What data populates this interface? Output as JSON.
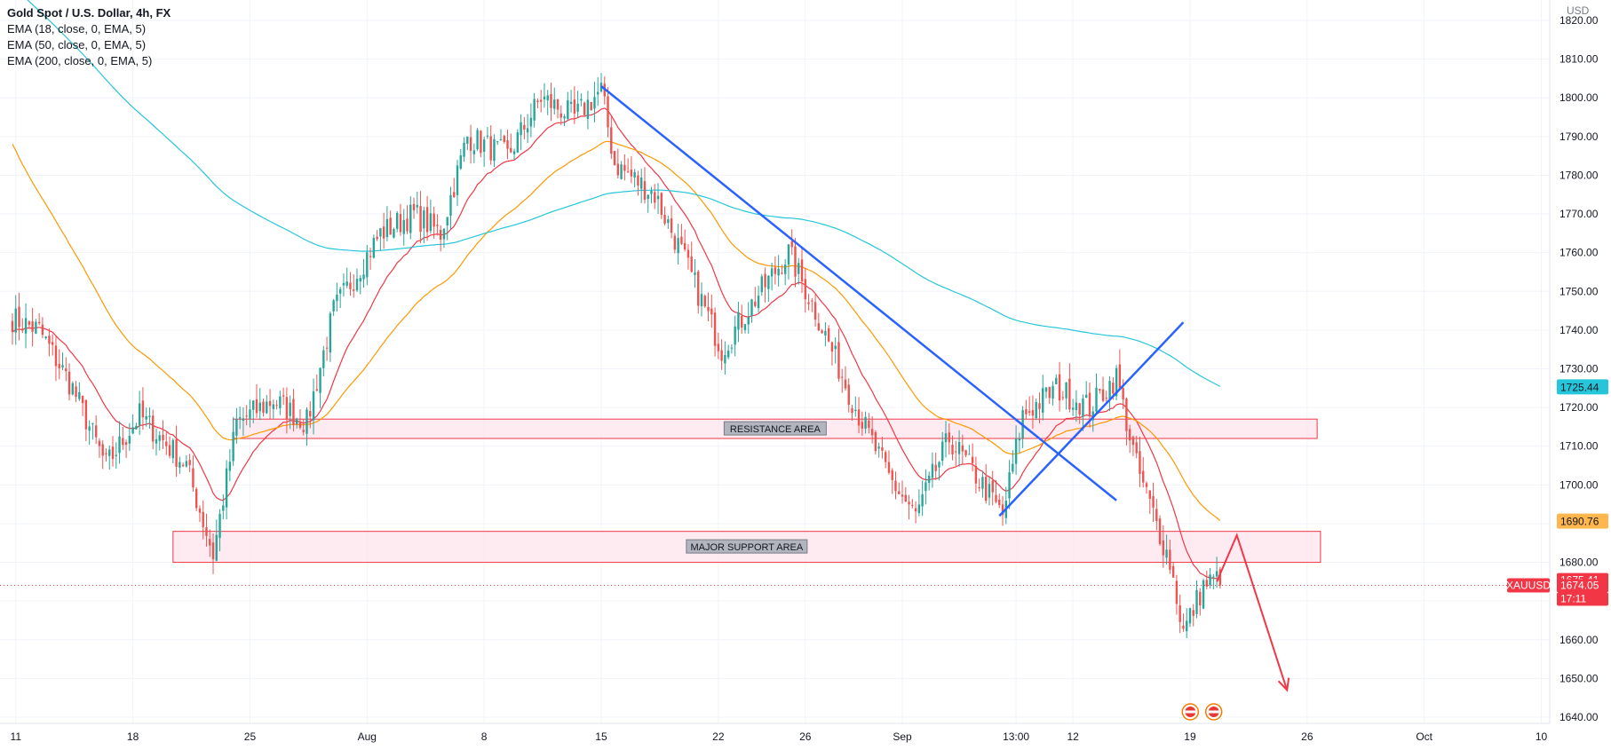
{
  "legend": {
    "symbol_title": "Gold Spot / U.S. Dollar, 4h, FX",
    "indicators": [
      {
        "label": "EMA (18, close, 0, EMA, 5)",
        "color": "#f23645"
      },
      {
        "label": "EMA (50, close, 0, EMA, 5)",
        "color": "#ff9800"
      },
      {
        "label": "EMA (200, close, 0, EMA, 5)",
        "color": "#26c6da"
      }
    ]
  },
  "chart_data": {
    "type": "candlestick",
    "currency": "USD",
    "symbol": "XAUUSD",
    "ylim": [
      1637,
      1825
    ],
    "y_ticks": [
      1640,
      1650,
      1660,
      1670,
      1680,
      1690,
      1700,
      1710,
      1720,
      1730,
      1740,
      1750,
      1760,
      1770,
      1780,
      1790,
      1800,
      1810,
      1820
    ],
    "y_tick_labels": [
      "1640.00",
      "1650.00",
      "1660.00",
      "1670.00",
      "1680.00",
      "1690.00",
      "1700.00",
      "1710.00",
      "1720.00",
      "1730.00",
      "1740.00",
      "1750.00",
      "1760.00",
      "1770.00",
      "1780.00",
      "1790.00",
      "1800.00",
      "1810.00",
      "1820.00"
    ],
    "x_ticks": [
      {
        "label": "11",
        "bar": 1
      },
      {
        "label": "18",
        "bar": 36
      },
      {
        "label": "25",
        "bar": 71
      },
      {
        "label": "Aug",
        "bar": 106
      },
      {
        "label": "8",
        "bar": 141
      },
      {
        "label": "15",
        "bar": 176
      },
      {
        "label": "22",
        "bar": 211
      },
      {
        "label": "26",
        "bar": 237
      },
      {
        "label": "Sep",
        "bar": 266
      },
      {
        "label": "13:00",
        "bar": 300
      },
      {
        "label": "12",
        "bar": 317
      },
      {
        "label": "19",
        "bar": 352
      },
      {
        "label": "26",
        "bar": 387
      },
      {
        "label": "Oct",
        "bar": 422
      },
      {
        "label": "10",
        "bar": 457
      }
    ],
    "total_bars": 470,
    "price_waypoints": [
      [
        0,
        1743
      ],
      [
        8,
        1740
      ],
      [
        18,
        1725
      ],
      [
        28,
        1705
      ],
      [
        38,
        1718
      ],
      [
        52,
        1705
      ],
      [
        60,
        1682
      ],
      [
        67,
        1716
      ],
      [
        78,
        1722
      ],
      [
        88,
        1716
      ],
      [
        96,
        1745
      ],
      [
        110,
        1765
      ],
      [
        120,
        1770
      ],
      [
        128,
        1765
      ],
      [
        136,
        1790
      ],
      [
        148,
        1785
      ],
      [
        158,
        1800
      ],
      [
        168,
        1795
      ],
      [
        176,
        1802
      ],
      [
        180,
        1783
      ],
      [
        192,
        1775
      ],
      [
        200,
        1760
      ],
      [
        212,
        1735
      ],
      [
        222,
        1748
      ],
      [
        232,
        1760
      ],
      [
        240,
        1745
      ],
      [
        252,
        1720
      ],
      [
        262,
        1702
      ],
      [
        270,
        1692
      ],
      [
        280,
        1712
      ],
      [
        290,
        1700
      ],
      [
        296,
        1692
      ],
      [
        302,
        1718
      ],
      [
        312,
        1725
      ],
      [
        322,
        1720
      ],
      [
        330,
        1728
      ],
      [
        336,
        1705
      ],
      [
        346,
        1680
      ],
      [
        350,
        1662
      ],
      [
        356,
        1674
      ],
      [
        361,
        1676
      ]
    ],
    "ema18_end": 1675.41,
    "ema50_end": 1690.76,
    "ema200_end": 1725.44,
    "last_price": 1674.05,
    "countdown": "17:11",
    "zones": [
      {
        "label": "RESISTANCE AREA",
        "bar_start": 66,
        "bar_end": 390,
        "y_top": 1717,
        "y_bottom": 1712
      },
      {
        "label": "MAJOR SUPPORT AREA",
        "bar_start": 48,
        "bar_end": 391,
        "y_top": 1688,
        "y_bottom": 1680
      }
    ],
    "trendlines": [
      {
        "color": "#2962ff",
        "points": [
          [
            176,
            1803
          ],
          [
            330,
            1696
          ]
        ]
      },
      {
        "color": "#2962ff",
        "points": [
          [
            295,
            1692
          ],
          [
            350,
            1742
          ]
        ]
      }
    ],
    "projection": {
      "color": "#f23645",
      "points": [
        [
          360,
          1675
        ],
        [
          366,
          1687
        ],
        [
          381,
          1647
        ]
      ]
    },
    "price_labels": [
      {
        "text": "1725.44",
        "value": 1725.44,
        "bg": "#26c6da",
        "fg": "#131722"
      },
      {
        "text": "1690.76",
        "value": 1690.76,
        "bg": "#ffb74d",
        "fg": "#131722"
      },
      {
        "text": "1675.41",
        "value": 1675.41,
        "bg": "#f23645",
        "fg": "#ffffff"
      },
      {
        "text": "1674.05",
        "value": 1674.05,
        "bg": "#f23645",
        "fg": "#ffffff"
      },
      {
        "text": "17:11",
        "value": null,
        "bg": "#f23645",
        "fg": "#ffffff"
      }
    ]
  },
  "colors": {
    "up": "#26a69a",
    "down": "#ef5350",
    "grid": "#f0f3fa",
    "axis_text": "#131722",
    "zone_fill": "#fce4ec",
    "zone_stroke": "#f23645"
  }
}
